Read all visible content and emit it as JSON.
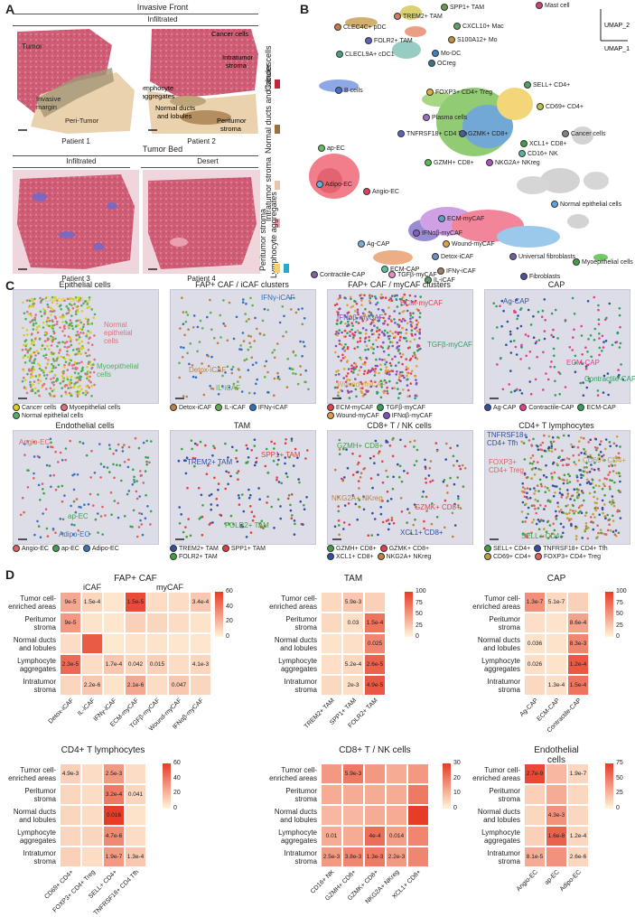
{
  "panelA": {
    "letter": "A",
    "invasive_front": "Invasive Front",
    "infiltrated_top": "Infiltrated",
    "tumor_bed": "Tumor Bed",
    "infiltrated_bottom": "Infiltrated",
    "desert": "Desert",
    "patients": [
      "Patient 1",
      "Patient 2",
      "Patient 3",
      "Patient 4"
    ],
    "annotations": {
      "tumor": "Tumor",
      "invasive_margin": "Invasive\nmargin",
      "peri_tumor": "Peri-Tumor",
      "cancer_cells": "Cancer cells",
      "intratumor_stroma": "Intratumor\nstroma",
      "lymphocyte_aggregates": "Lymphocyte\naggregates",
      "normal_ducts": "Normal ducts\nand lobules",
      "peritumor_stroma": "Peritumor\nstroma"
    },
    "legend": [
      {
        "label": "Cancer cells",
        "color": "#c0263a"
      },
      {
        "label": "Normal ducts and lobules",
        "color": "#9b7040"
      },
      {
        "label": "Intratumor stroma",
        "color": "#e8c6ae"
      },
      {
        "label": "Peritumor stroma",
        "color": "#f4a8b8"
      },
      {
        "label": "Lymphocyte aggregates",
        "color": "#f2d06a"
      }
    ],
    "legend_extra": {
      "lymph_second": "#2aa8c4"
    }
  },
  "panelB": {
    "letter": "B",
    "axis_y": "UMAP_2",
    "axis_x": "UMAP_1",
    "labels": [
      "TREM2+ TAM",
      "SPP1+ TAM",
      "Mast cell",
      "CLEC4C+ pDC",
      "CXCL10+ Mac",
      "FOLR2+ TAM",
      "S100A12+ Mo",
      "CLECL9A+ cDC1",
      "Mo-DC",
      "OCreg",
      "B cells",
      "FOXP3+ CD4+ Treg",
      "SELL+ CD4+",
      "CD69+ CD4+",
      "Plasma cells",
      "Cancer cells",
      "TNFRSF18+\nCD4 Tfh",
      "GZMK+ CD8+",
      "XCL1+ CD8+",
      "CD16+ NK",
      "ap-EC",
      "GZMH+ CD8+",
      "NKG2A+ NKreg",
      "Adipo-EC",
      "Angio-EC",
      "Normal epithelial cells",
      "ECM-myCAF",
      "IFNαβ-myCAF",
      "Ag-CAP",
      "Wound-myCAF",
      "Detox-iCAF",
      "Universal fibroblasts",
      "ECM-CAP",
      "TGFβ-myCAF",
      "Contractile-CAP",
      "IFNγ-iCAF",
      "IL-iCAF",
      "Fibroblasts",
      "Myoepithelial cells"
    ]
  },
  "panelC": {
    "letter": "C",
    "titles": [
      "Epithelial cells",
      "FAP+ CAF / iCAF clusters",
      "FAP+ CAF / myCAF clusters",
      "CAP",
      "Endothelial cells",
      "TAM",
      "CD8+ T / NK cells",
      "CD4+ T lymphocytes"
    ],
    "epi_labels": [
      "Cancer cells",
      "Normal\nepithelial\ncells",
      "Myoepithelial\ncells"
    ],
    "epi_legend": [
      "Cancer cells",
      "Myoepithelial cells",
      "Normal epithelial cells"
    ],
    "icaf_labels": [
      "IFNγ-iCAF",
      "Detox-iCAF",
      "IL-iCAF"
    ],
    "icaf_legend": [
      "Detox-iCAF",
      "IL-iCAF",
      "IFNγ-iCAF"
    ],
    "mycaf_labels": [
      "ECM-myCAF",
      "IFNαβ-myCAF",
      "TGFβ-myCAF",
      "Wound-myCAF"
    ],
    "mycaf_legend": [
      "ECM-myCAF",
      "TGFβ-myCAF",
      "Wound-myCAF",
      "IFNαβ-myCAF"
    ],
    "cap_labels": [
      "Ag-CAP",
      "ECM-CAP",
      "Contractile-CAP"
    ],
    "cap_legend": [
      "Ag-CAP",
      "Contractile-CAP",
      "ECM-CAP"
    ],
    "endo_labels": [
      "Angio-EC",
      "ap-EC",
      "Adipo-EC"
    ],
    "endo_legend": [
      "Angio-EC",
      "ap-EC",
      "Adipo-EC"
    ],
    "tam_labels": [
      "TREM2+ TAM",
      "SPP1+ TAM",
      "FOLR2+ TAM"
    ],
    "tam_legend": [
      "TREM2+ TAM",
      "SPP1+ TAM",
      "FOLR2+ TAM"
    ],
    "cd8_labels": [
      "GZMH+ CD8+",
      "NKG2A+ NKreg",
      "GZMK+ CD8+",
      "XCL1+ CD8+"
    ],
    "cd8_legend": [
      "GZMH+ CD8+",
      "GZMK+ CD8+",
      "XCL1+ CD8+",
      "NKG2A+ NKreg"
    ],
    "cd4_labels": [
      "TNFRSF18+\nCD4+ Tfh",
      "FOXP3+\nCD4+ Treg",
      "CD69+ CD4+",
      "SELL+ CD4+"
    ],
    "cd4_legend": [
      "SELL+ CD4+",
      "TNFRSF18+ CD4+ Tfh",
      "CD69+ CD4+",
      "FOXP3+ CD4+ Treg"
    ]
  },
  "panelD": {
    "letter": "D",
    "rows": [
      "Tumor cell-\nenriched areas",
      "Peritumor\nstroma",
      "Normal ducts\nand lobules",
      "Lymphocyte\naggregates",
      "Intratumor\nstroma"
    ],
    "heatmaps": [
      {
        "title": "FAP+ CAF",
        "subgroups": [
          "iCAF",
          "myCAF"
        ],
        "cols": [
          "Detox-iCAF",
          "IL-iCAF",
          "IFNγ-iCAF",
          "ECM-myCAF",
          "TGFβ-myCAF",
          "Wound-myCAF",
          "IFNαβ-myCAF"
        ],
        "values": [
          [
            25,
            10,
            5,
            55,
            8,
            8,
            15
          ],
          [
            30,
            6,
            5,
            12,
            10,
            8,
            6
          ],
          [
            8,
            50,
            4,
            6,
            6,
            5,
            5
          ],
          [
            45,
            8,
            15,
            10,
            12,
            8,
            10
          ],
          [
            10,
            15,
            6,
            25,
            8,
            15,
            10
          ]
        ],
        "labels": [
          [
            "9e-5",
            "1.5e-4",
            "",
            "1.5e-5",
            "",
            "",
            "3.4e-4"
          ],
          [
            "9e-5",
            "",
            "",
            "",
            "",
            "",
            ""
          ],
          [
            "",
            "",
            "",
            "",
            "",
            "",
            ""
          ],
          [
            "2.3e-5",
            "",
            "1.7e-4",
            "0.042",
            "0.015",
            "",
            "4.1e-3"
          ],
          [
            "",
            "2.2e-6",
            "",
            "2.1e-6",
            "",
            "0.047",
            ""
          ]
        ],
        "scale": {
          "max": 60,
          "ticks": [
            "60",
            "40",
            "20",
            "0"
          ]
        }
      },
      {
        "title": "TAM",
        "cols": [
          "TREM2+ TAM",
          "SPP1+ TAM",
          "FOLR2+ TAM"
        ],
        "values": [
          [
            15,
            25,
            20
          ],
          [
            15,
            12,
            70
          ],
          [
            10,
            12,
            60
          ],
          [
            12,
            15,
            80
          ],
          [
            15,
            12,
            85
          ]
        ],
        "labels": [
          [
            "",
            "5.9e-3",
            ""
          ],
          [
            "",
            "0.03",
            "1.5e-4"
          ],
          [
            "",
            "",
            "0.025"
          ],
          [
            "",
            "5.2e-4",
            "2.6e-5"
          ],
          [
            "",
            "2e-3",
            "4.9e-5"
          ]
        ],
        "scale": {
          "max": 100,
          "ticks": [
            "100",
            "75",
            "50",
            "25",
            "0"
          ]
        }
      },
      {
        "title": "CAP",
        "cols": [
          "Ag-CAP",
          "ECM-CAP",
          "Contractile-CAP"
        ],
        "values": [
          [
            55,
            15,
            20
          ],
          [
            12,
            10,
            45
          ],
          [
            10,
            10,
            60
          ],
          [
            12,
            10,
            85
          ],
          [
            15,
            12,
            70
          ]
        ],
        "labels": [
          [
            "1.3e-7",
            "5.1e-7",
            ""
          ],
          [
            "",
            "",
            "8.6e-4"
          ],
          [
            "0.036",
            "",
            "8.3e-3"
          ],
          [
            "0.026",
            "",
            "1.2e-4"
          ],
          [
            "",
            "1.3e-4",
            "1.5e-4"
          ]
        ],
        "scale": {
          "max": 100,
          "ticks": [
            "100",
            "75",
            "50",
            "25",
            "0"
          ]
        }
      },
      {
        "title": "CD4+ T lymphocytes",
        "cols": [
          "CD69+ CD4+",
          "FOXP3+ CD4+ Treg",
          "SELL+ CD4+",
          "TNFRSF18+ CD4 Tfh"
        ],
        "values": [
          [
            12,
            8,
            30,
            8
          ],
          [
            10,
            8,
            40,
            10
          ],
          [
            10,
            8,
            70,
            6
          ],
          [
            10,
            10,
            35,
            8
          ],
          [
            12,
            8,
            30,
            15
          ]
        ],
        "labels": [
          [
            "4.9e-3",
            "",
            "2.5e-3",
            ""
          ],
          [
            "",
            "",
            "3.2e-4",
            "0.041"
          ],
          [
            "",
            "",
            "0.016",
            ""
          ],
          [
            "",
            "",
            "4.7e-6",
            ""
          ],
          [
            "",
            "",
            "1.9e-7",
            "1.3e-4"
          ]
        ],
        "scale": {
          "max": 60,
          "ticks": [
            "60",
            "40",
            "20",
            "0"
          ]
        }
      },
      {
        "title": "CD8+ T / NK cells",
        "cols": [
          "CD16+ NK",
          "GZMH+ CD8+",
          "GZMK+ CD8+",
          "NKG2A+ NKreg",
          "XCL1+ CD8+"
        ],
        "values": [
          [
            15,
            20,
            15,
            12,
            15
          ],
          [
            12,
            12,
            12,
            12,
            20
          ],
          [
            10,
            10,
            12,
            12,
            35
          ],
          [
            12,
            12,
            22,
            14,
            18
          ],
          [
            15,
            18,
            20,
            15,
            18
          ]
        ],
        "labels": [
          [
            "",
            "5.9e-3",
            "",
            "",
            ""
          ],
          [
            "",
            "",
            "",
            "",
            ""
          ],
          [
            "",
            "",
            "",
            "",
            ""
          ],
          [
            "0.01",
            "",
            "4e-4",
            "0.014",
            ""
          ],
          [
            "2.5e-3",
            "3.8e-3",
            "1.3e-3",
            "2.2e-3",
            ""
          ]
        ],
        "scale": {
          "max": 30,
          "ticks": [
            "30",
            "20",
            "10",
            "0"
          ]
        }
      },
      {
        "title": "Endothelial cells",
        "cols": [
          "Angio-EC",
          "ap-EC",
          "Adipo-EC"
        ],
        "values": [
          [
            70,
            25,
            12
          ],
          [
            15,
            30,
            12
          ],
          [
            12,
            40,
            12
          ],
          [
            15,
            60,
            12
          ],
          [
            30,
            40,
            12
          ]
        ],
        "labels": [
          [
            "2.7e-9",
            "",
            "1.9e-7"
          ],
          [
            "",
            "",
            ""
          ],
          [
            "",
            "4.3e-3",
            ""
          ],
          [
            "",
            "1.6e-8",
            "1.2e-4"
          ],
          [
            "8.1e-5",
            "",
            "2.6e-6"
          ]
        ],
        "scale": {
          "max": 75,
          "ticks": [
            "75",
            "50",
            "25",
            "0"
          ]
        }
      }
    ]
  }
}
